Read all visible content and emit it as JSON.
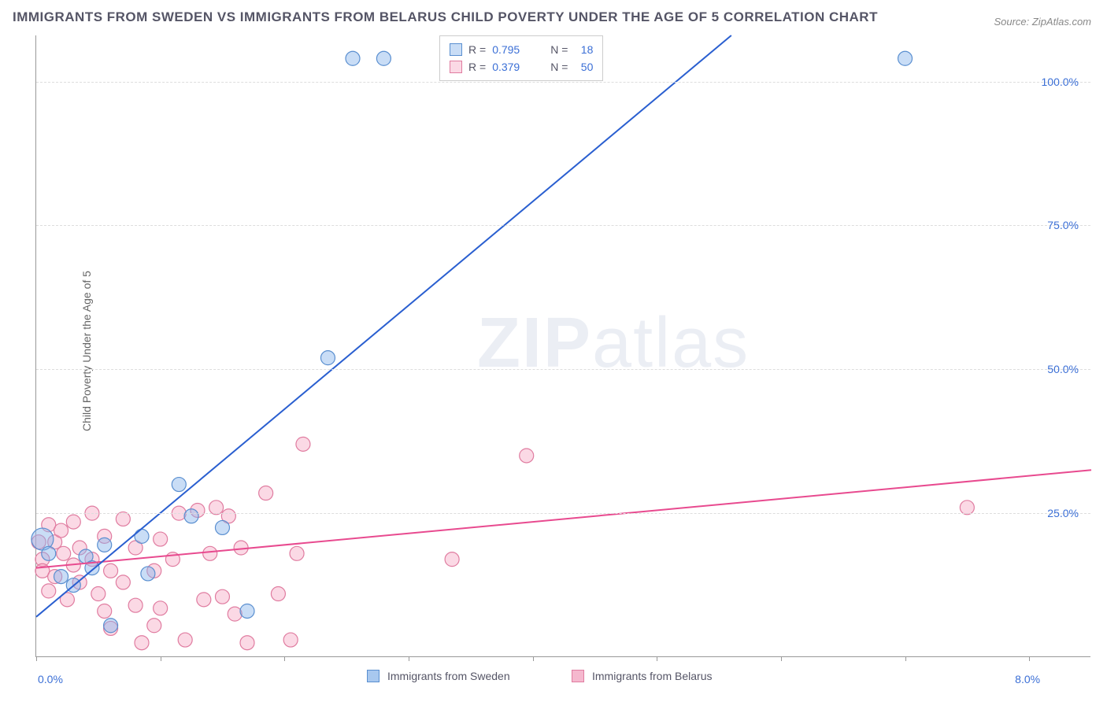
{
  "title": "IMMIGRANTS FROM SWEDEN VS IMMIGRANTS FROM BELARUS CHILD POVERTY UNDER THE AGE OF 5 CORRELATION CHART",
  "source": "Source: ZipAtlas.com",
  "ylabel": "Child Poverty Under the Age of 5",
  "watermark_a": "ZIP",
  "watermark_b": "atlas",
  "chart": {
    "type": "scatter",
    "xlim": [
      0.0,
      8.5
    ],
    "ylim": [
      0.0,
      108.0
    ],
    "x_axis_labels": [
      {
        "value": 0.0,
        "label": "0.0%"
      },
      {
        "value": 8.0,
        "label": "8.0%"
      }
    ],
    "x_axis_ticks": [
      0,
      1,
      2,
      3,
      4,
      5,
      6,
      7,
      8
    ],
    "y_axis_labels": [
      {
        "value": 25.0,
        "label": "25.0%"
      },
      {
        "value": 50.0,
        "label": "50.0%"
      },
      {
        "value": 75.0,
        "label": "75.0%"
      },
      {
        "value": 100.0,
        "label": "100.0%"
      }
    ],
    "background_color": "#ffffff",
    "grid_color": "#dddddd",
    "axis_color": "#999999",
    "tick_label_color": "#3b6fd6",
    "series": [
      {
        "name": "Immigrants from Sweden",
        "marker_color_fill": "rgba(135,180,235,0.45)",
        "marker_color_stroke": "#5a8fd0",
        "line_color": "#2a5fd0",
        "line_width": 2,
        "marker_radius": 9,
        "r_label": "R = ",
        "r_value": "0.795",
        "n_label": "N = ",
        "n_value": "18",
        "regression": {
          "x1": 0.0,
          "y1": 7.0,
          "x2": 5.6,
          "y2": 108.0
        },
        "points": [
          {
            "x": 0.05,
            "y": 20.5,
            "r": 14
          },
          {
            "x": 0.1,
            "y": 18.0
          },
          {
            "x": 0.2,
            "y": 14.0
          },
          {
            "x": 0.3,
            "y": 12.5
          },
          {
            "x": 0.4,
            "y": 17.5
          },
          {
            "x": 0.45,
            "y": 15.5
          },
          {
            "x": 0.55,
            "y": 19.5
          },
          {
            "x": 0.6,
            "y": 5.5
          },
          {
            "x": 0.85,
            "y": 21.0
          },
          {
            "x": 0.9,
            "y": 14.5
          },
          {
            "x": 1.15,
            "y": 30.0
          },
          {
            "x": 1.25,
            "y": 24.5
          },
          {
            "x": 1.5,
            "y": 22.5
          },
          {
            "x": 1.7,
            "y": 8.0
          },
          {
            "x": 2.35,
            "y": 52.0
          },
          {
            "x": 2.55,
            "y": 104.0
          },
          {
            "x": 2.8,
            "y": 104.0
          },
          {
            "x": 7.0,
            "y": 104.0
          }
        ]
      },
      {
        "name": "Immigrants from Belarus",
        "marker_color_fill": "rgba(245,160,190,0.40)",
        "marker_color_stroke": "#e07ca0",
        "line_color": "#e84a8f",
        "line_width": 2,
        "marker_radius": 9,
        "r_label": "R = ",
        "r_value": "0.379",
        "n_label": "N = ",
        "n_value": "50",
        "regression": {
          "x1": 0.0,
          "y1": 15.5,
          "x2": 8.5,
          "y2": 32.5
        },
        "points": [
          {
            "x": 0.02,
            "y": 20.0
          },
          {
            "x": 0.05,
            "y": 17.0
          },
          {
            "x": 0.05,
            "y": 15.0
          },
          {
            "x": 0.1,
            "y": 11.5
          },
          {
            "x": 0.1,
            "y": 23.0
          },
          {
            "x": 0.15,
            "y": 20.0
          },
          {
            "x": 0.15,
            "y": 14.0
          },
          {
            "x": 0.2,
            "y": 22.0
          },
          {
            "x": 0.22,
            "y": 18.0
          },
          {
            "x": 0.25,
            "y": 10.0
          },
          {
            "x": 0.3,
            "y": 23.5
          },
          {
            "x": 0.3,
            "y": 16.0
          },
          {
            "x": 0.35,
            "y": 13.0
          },
          {
            "x": 0.35,
            "y": 19.0
          },
          {
            "x": 0.45,
            "y": 17.0
          },
          {
            "x": 0.45,
            "y": 25.0
          },
          {
            "x": 0.5,
            "y": 11.0
          },
          {
            "x": 0.55,
            "y": 8.0
          },
          {
            "x": 0.55,
            "y": 21.0
          },
          {
            "x": 0.6,
            "y": 15.0
          },
          {
            "x": 0.6,
            "y": 5.0
          },
          {
            "x": 0.7,
            "y": 13.0
          },
          {
            "x": 0.7,
            "y": 24.0
          },
          {
            "x": 0.8,
            "y": 19.0
          },
          {
            "x": 0.8,
            "y": 9.0
          },
          {
            "x": 0.85,
            "y": 2.5
          },
          {
            "x": 0.95,
            "y": 15.0
          },
          {
            "x": 0.95,
            "y": 5.5
          },
          {
            "x": 1.0,
            "y": 20.5
          },
          {
            "x": 1.0,
            "y": 8.5
          },
          {
            "x": 1.1,
            "y": 17.0
          },
          {
            "x": 1.15,
            "y": 25.0
          },
          {
            "x": 1.2,
            "y": 3.0
          },
          {
            "x": 1.3,
            "y": 25.5
          },
          {
            "x": 1.35,
            "y": 10.0
          },
          {
            "x": 1.4,
            "y": 18.0
          },
          {
            "x": 1.45,
            "y": 26.0
          },
          {
            "x": 1.5,
            "y": 10.5
          },
          {
            "x": 1.55,
            "y": 24.5
          },
          {
            "x": 1.6,
            "y": 7.5
          },
          {
            "x": 1.65,
            "y": 19.0
          },
          {
            "x": 1.7,
            "y": 2.5
          },
          {
            "x": 1.85,
            "y": 28.5
          },
          {
            "x": 1.95,
            "y": 11.0
          },
          {
            "x": 2.05,
            "y": 3.0
          },
          {
            "x": 2.1,
            "y": 18.0
          },
          {
            "x": 2.15,
            "y": 37.0
          },
          {
            "x": 3.35,
            "y": 17.0
          },
          {
            "x": 3.95,
            "y": 35.0
          },
          {
            "x": 7.5,
            "y": 26.0
          }
        ]
      }
    ],
    "legend_bottom": [
      {
        "label": "Immigrants from Sweden",
        "fill": "#a8c8ef",
        "stroke": "#5a8fd0"
      },
      {
        "label": "Immigrants from Belarus",
        "fill": "#f5b8ce",
        "stroke": "#e07ca0"
      }
    ]
  }
}
